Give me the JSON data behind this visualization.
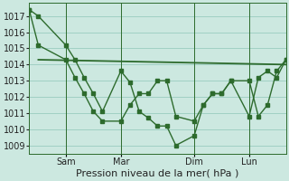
{
  "background_color": "#cce8e0",
  "plot_bg_color": "#cce8e0",
  "grid_color": "#99ccbf",
  "line_color": "#2d6b2d",
  "title": "Pression niveau de la mer( hPa )",
  "ylim": [
    1008.5,
    1017.8
  ],
  "yticks": [
    1009,
    1010,
    1011,
    1012,
    1013,
    1014,
    1015,
    1016,
    1017
  ],
  "xlim": [
    0,
    28
  ],
  "vlines_x": [
    4,
    10,
    18,
    24
  ],
  "x_tick_positions": [
    4,
    10,
    18,
    24
  ],
  "x_tick_labels": [
    "Sam",
    "Mar",
    "Dim",
    "Lun"
  ],
  "line1_x": [
    0,
    1,
    4,
    5,
    6,
    7,
    8,
    10,
    11,
    12,
    13,
    14,
    15,
    16,
    18,
    19,
    20,
    21,
    22,
    24,
    25,
    26,
    27,
    28
  ],
  "line1_y": [
    1017.4,
    1017.0,
    1015.2,
    1014.3,
    1013.2,
    1012.2,
    1011.1,
    1013.6,
    1012.9,
    1011.1,
    1010.7,
    1010.2,
    1010.2,
    1009.0,
    1009.6,
    1011.5,
    1012.2,
    1012.2,
    1013.0,
    1013.0,
    1010.8,
    1011.5,
    1013.6,
    1014.3
  ],
  "line2_x": [
    0,
    1,
    4,
    5,
    6,
    7,
    8,
    10,
    11,
    12,
    13,
    14,
    15,
    16,
    18,
    19,
    20,
    21,
    22,
    24,
    25,
    26,
    27,
    28
  ],
  "line2_y": [
    1017.4,
    1015.2,
    1014.3,
    1013.2,
    1012.2,
    1011.1,
    1010.5,
    1010.5,
    1011.5,
    1012.2,
    1012.2,
    1013.0,
    1013.0,
    1010.8,
    1010.5,
    1011.5,
    1012.2,
    1012.2,
    1013.0,
    1010.8,
    1013.2,
    1013.6,
    1013.2,
    1014.3
  ],
  "line3_x": [
    1,
    28
  ],
  "line3_y": [
    1014.3,
    1014.0
  ],
  "marker_size": 2.5,
  "line_width": 1.0,
  "font_size": 8,
  "tick_font_size": 7
}
